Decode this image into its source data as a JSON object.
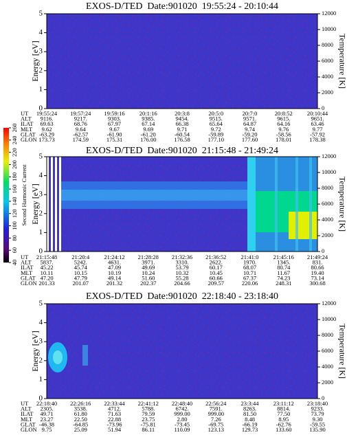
{
  "chart_data": [
    {
      "type": "spectrogram",
      "title": "EXOS-D/TED  Date:901020  19:55:24 - 20:10:44",
      "ylabel": "Energy [eV]",
      "y2label": "Temperature [K]",
      "ylim": [
        0,
        5
      ],
      "yticks": [
        0,
        1,
        2,
        3,
        4,
        5
      ],
      "y2lim": [
        0,
        12000
      ],
      "y2ticks": [
        0,
        2000,
        4000,
        6000,
        8000,
        10000,
        12000
      ],
      "ephemeris": {
        "labels": [
          "UT",
          "ALT",
          "ILAT",
          "MLT",
          "GLAT",
          "GLON"
        ],
        "rows": [
          [
            "19:55:24",
            "19:57:24",
            "19:59:16",
            "20:1:16",
            "20:3:8",
            "20:5:0",
            "20:7:0",
            "20:8:52",
            "20:10:44"
          ],
          [
            "9116.",
            "9217.",
            "9303.",
            "9385.",
            "9454.",
            "9515.",
            "9571.",
            "9615.",
            "9651."
          ],
          [
            "69.63",
            "68.76",
            "67.97",
            "67.14",
            "66.38",
            "65.64",
            "64.87",
            "64.16",
            "63.46"
          ],
          [
            "9.62",
            "9.64",
            "9.67",
            "9.69",
            "9.71",
            "9.72",
            "9.74",
            "9.76",
            "9.77"
          ],
          [
            "-63.29",
            "-62.57",
            "-61.90",
            "-61.20",
            "-60.54",
            "-59.89",
            "-59.20",
            "-58.56",
            "-57.92"
          ],
          [
            "173.73",
            "174.59",
            "175.31",
            "176.00",
            "176.58",
            "177.10",
            "177.60",
            "178.01",
            "178.38"
          ]
        ]
      }
    },
    {
      "type": "spectrogram",
      "title": "EXOS-D/TED  Date:901020  21:15:48 - 21:49:24",
      "ylabel": "Energy [eV]",
      "y2label": "Temperature [K]",
      "ylim": [
        0,
        5
      ],
      "yticks": [
        0,
        1,
        2,
        3,
        4,
        5
      ],
      "y2lim": [
        0,
        12000
      ],
      "y2ticks": [
        0,
        2000,
        4000,
        6000,
        8000,
        10000,
        12000
      ],
      "colorbar": {
        "label": "Second Harmonic Current",
        "lim": [
          40,
          260
        ],
        "ticks": [
          40,
          60,
          80,
          100,
          120,
          140,
          160,
          180,
          200,
          220,
          240,
          260
        ]
      },
      "ephemeris": {
        "labels": [
          "UT",
          "ALT",
          "ILAT",
          "MLT",
          "GLAT",
          "GLON"
        ],
        "rows": [
          [
            "21:15:48",
            "21:20:4",
            "21:24:12",
            "21:28:28",
            "21:32:36",
            "21:36:52",
            "21:41:0",
            "21:45:16",
            "21:49:24"
          ],
          [
            "5837.",
            "5242.",
            "4631.",
            "3971.",
            "3310.",
            "2622.",
            "1970.",
            "1345.",
            "831."
          ],
          [
            "45.22",
            "45.74",
            "47.09",
            "49.69",
            "53.79",
            "60.17",
            "68.07",
            "80.74",
            "80.66"
          ],
          [
            "10.11",
            "10.15",
            "10.19",
            "10.24",
            "10.32",
            "10.45",
            "10.71",
            "11.67",
            "19.40"
          ],
          [
            "47.20",
            "47.79",
            "49.14",
            "51.60",
            "55.28",
            "60.66",
            "67.37",
            "74.23",
            "73.14"
          ],
          [
            "201.33",
            "201.07",
            "201.32",
            "202.37",
            "204.66",
            "209.57",
            "220.06",
            "248.31",
            "300.68"
          ]
        ]
      }
    },
    {
      "type": "spectrogram",
      "title": "EXOS-D/TED  Date:901020  22:18:40 - 23:18:40",
      "ylabel": "Energy [eV]",
      "y2label": "Temperature [K]",
      "ylim": [
        0,
        5
      ],
      "yticks": [
        0,
        1,
        2,
        3,
        4,
        5
      ],
      "y2lim": [
        0,
        12000
      ],
      "y2ticks": [
        0,
        2000,
        4000,
        6000,
        8000,
        10000,
        12000
      ],
      "ephemeris": {
        "labels": [
          "UT",
          "ALT",
          "ILAT",
          "MLT",
          "GLAT",
          "GLON"
        ],
        "rows": [
          [
            "22:18:40",
            "22:26:16",
            "22:33:44",
            "22:41:12",
            "22:48:40",
            "22:56:24",
            "23:3:44",
            "23:11:12",
            "23:18:40"
          ],
          [
            "2305.",
            "3538.",
            "4712.",
            "5788.",
            "6742.",
            "7591.",
            "8263.",
            "8814.",
            "9233."
          ],
          [
            "49.71",
            "61.80",
            "71.63",
            "79.59",
            "999.00",
            "999.00",
            "81.50",
            "77.50",
            "73.79"
          ],
          [
            "23.27",
            "22.50",
            "22.88",
            "23.75",
            "2.80",
            "7.26",
            "8.48",
            "8.95",
            "9.30"
          ],
          [
            "-46.38",
            "-64.85",
            "-73.96",
            "-75.81",
            "-73.45",
            "-69.75",
            "-66.19",
            "-62.76",
            "-59.55"
          ],
          [
            "9.75",
            "25.09",
            "51.94",
            "86.11",
            "110.09",
            "123.13",
            "129.73",
            "133.60",
            "135.90"
          ]
        ]
      }
    }
  ]
}
